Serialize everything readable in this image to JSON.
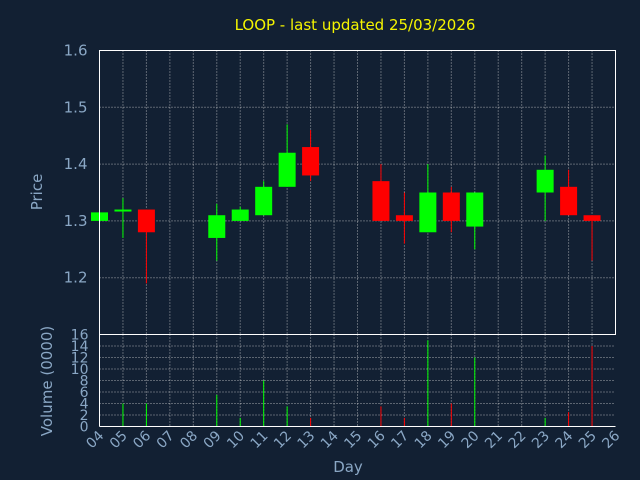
{
  "chart_data": [
    {
      "type": "candlestick",
      "title": "LOOP - last updated 25/03/2026",
      "ylabel": "Price",
      "ylim": [
        1.1,
        1.6
      ],
      "yticks": [
        "1.2",
        "1.3",
        "1.4",
        "1.5",
        "1.6"
      ],
      "grid": true,
      "colors": {
        "up": "#00ff00",
        "down": "#ff0000"
      },
      "candles": [
        {
          "day": "04",
          "open": 1.3,
          "high": 1.315,
          "low": 1.3,
          "close": 1.315
        },
        {
          "day": "05",
          "open": 1.32,
          "high": 1.34,
          "low": 1.27,
          "close": 1.32
        },
        {
          "day": "06",
          "open": 1.32,
          "high": 1.32,
          "low": 1.19,
          "close": 1.28
        },
        {
          "day": "09",
          "open": 1.27,
          "high": 1.33,
          "low": 1.23,
          "close": 1.31
        },
        {
          "day": "10",
          "open": 1.3,
          "high": 1.325,
          "low": 1.3,
          "close": 1.32
        },
        {
          "day": "11",
          "open": 1.31,
          "high": 1.37,
          "low": 1.31,
          "close": 1.36
        },
        {
          "day": "12",
          "open": 1.36,
          "high": 1.47,
          "low": 1.36,
          "close": 1.42
        },
        {
          "day": "13",
          "open": 1.43,
          "high": 1.46,
          "low": 1.37,
          "close": 1.38
        },
        {
          "day": "16",
          "open": 1.37,
          "high": 1.4,
          "low": 1.3,
          "close": 1.3
        },
        {
          "day": "17",
          "open": 1.31,
          "high": 1.35,
          "low": 1.26,
          "close": 1.3
        },
        {
          "day": "18",
          "open": 1.28,
          "high": 1.4,
          "low": 1.28,
          "close": 1.35
        },
        {
          "day": "19",
          "open": 1.35,
          "high": 1.36,
          "low": 1.28,
          "close": 1.3
        },
        {
          "day": "20",
          "open": 1.29,
          "high": 1.35,
          "low": 1.25,
          "close": 1.35
        },
        {
          "day": "23",
          "open": 1.35,
          "high": 1.415,
          "low": 1.3,
          "close": 1.39
        },
        {
          "day": "24",
          "open": 1.36,
          "high": 1.39,
          "low": 1.31,
          "close": 1.31
        },
        {
          "day": "25",
          "open": 1.31,
          "high": 1.31,
          "low": 1.23,
          "close": 1.3
        }
      ]
    },
    {
      "type": "bar",
      "ylabel": "Volume (0000)",
      "xlabel": "Day",
      "ylim": [
        0,
        16
      ],
      "yticks": [
        "0",
        "2",
        "4",
        "6",
        "8",
        "10",
        "12",
        "14",
        "16"
      ],
      "categories": [
        "04",
        "05",
        "06",
        "07",
        "08",
        "09",
        "10",
        "11",
        "12",
        "13",
        "14",
        "15",
        "16",
        "17",
        "18",
        "19",
        "20",
        "21",
        "22",
        "23",
        "24",
        "25",
        "26"
      ],
      "bars": [
        {
          "day": "05",
          "value": 4,
          "color": "#00ff00"
        },
        {
          "day": "06",
          "value": 4,
          "color": "#00ff00"
        },
        {
          "day": "09",
          "value": 5.5,
          "color": "#00ff00"
        },
        {
          "day": "10",
          "value": 1.5,
          "color": "#00ff00"
        },
        {
          "day": "11",
          "value": 8,
          "color": "#00ff00"
        },
        {
          "day": "12",
          "value": 3.5,
          "color": "#00ff00"
        },
        {
          "day": "13",
          "value": 1.5,
          "color": "#ff0000"
        },
        {
          "day": "16",
          "value": 3.5,
          "color": "#ff0000"
        },
        {
          "day": "17",
          "value": 1.5,
          "color": "#ff0000"
        },
        {
          "day": "18",
          "value": 15,
          "color": "#00ff00"
        },
        {
          "day": "19",
          "value": 4,
          "color": "#ff0000"
        },
        {
          "day": "20",
          "value": 12,
          "color": "#00ff00"
        },
        {
          "day": "23",
          "value": 1.5,
          "color": "#00ff00"
        },
        {
          "day": "24",
          "value": 2.5,
          "color": "#ff0000"
        },
        {
          "day": "25",
          "value": 14,
          "color": "#ff0000"
        }
      ]
    }
  ]
}
